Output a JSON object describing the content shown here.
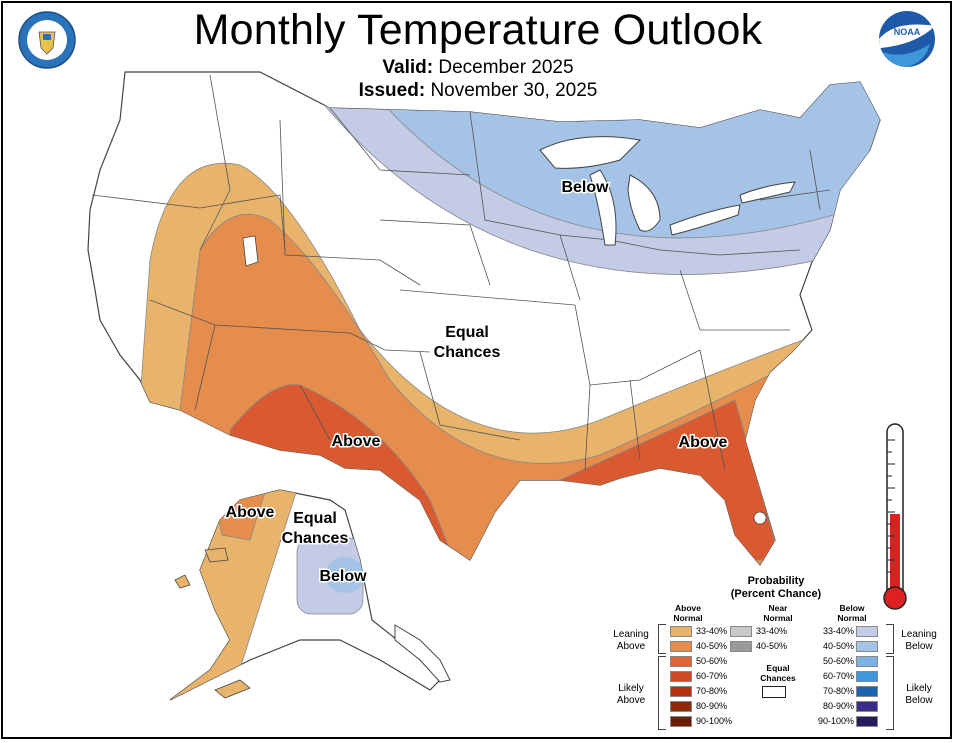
{
  "title": "Monthly Temperature Outlook",
  "valid_label": "Valid:",
  "valid_value": "December 2025",
  "issued_label": "Issued:",
  "issued_value": "November 30, 2025",
  "map_labels": {
    "above_southwest": "Above",
    "above_southeast": "Above",
    "equal_conus_1": "Equal",
    "equal_conus_2": "Chances",
    "below_great_lakes": "Below",
    "above_alaska": "Above",
    "equal_alaska_1": "Equal",
    "equal_alaska_2": "Chances",
    "below_alaska": "Below"
  },
  "legend": {
    "title_1": "Probability",
    "title_2": "(Percent Chance)",
    "above_head_1": "Above",
    "above_head_2": "Normal",
    "near_head_1": "Near",
    "near_head_2": "Normal",
    "below_head_1": "Below",
    "below_head_2": "Normal",
    "equal_1": "Equal",
    "equal_2": "Chances",
    "leaning_above_1": "Leaning",
    "leaning_above_2": "Above",
    "likely_above_1": "Likely",
    "likely_above_2": "Above",
    "leaning_below_1": "Leaning",
    "leaning_below_2": "Below",
    "likely_below_1": "Likely",
    "likely_below_2": "Below",
    "above": [
      {
        "range": "33-40%",
        "color": "#e8b46b"
      },
      {
        "range": "40-50%",
        "color": "#e58d4d"
      },
      {
        "range": "50-60%",
        "color": "#dc6437"
      },
      {
        "range": "60-70%",
        "color": "#d04a28"
      },
      {
        "range": "70-80%",
        "color": "#b8300e"
      },
      {
        "range": "80-90%",
        "color": "#8e2a0a"
      },
      {
        "range": "90-100%",
        "color": "#6a1e05"
      }
    ],
    "near": [
      {
        "range": "33-40%",
        "color": "#c9c9c9"
      },
      {
        "range": "40-50%",
        "color": "#9a9a9a"
      }
    ],
    "below": [
      {
        "range": "33-40%",
        "color": "#c3cbe6"
      },
      {
        "range": "40-50%",
        "color": "#a5c3e6"
      },
      {
        "range": "50-60%",
        "color": "#7db2e4"
      },
      {
        "range": "60-70%",
        "color": "#3f96d9"
      },
      {
        "range": "70-80%",
        "color": "#1b62b0"
      },
      {
        "range": "80-90%",
        "color": "#3b2e8a"
      },
      {
        "range": "90-100%",
        "color": "#241c5c"
      }
    ]
  },
  "logos": {
    "left": "department-of-commerce-seal",
    "right": "noaa-logo",
    "noaa_text": "NOAA"
  }
}
